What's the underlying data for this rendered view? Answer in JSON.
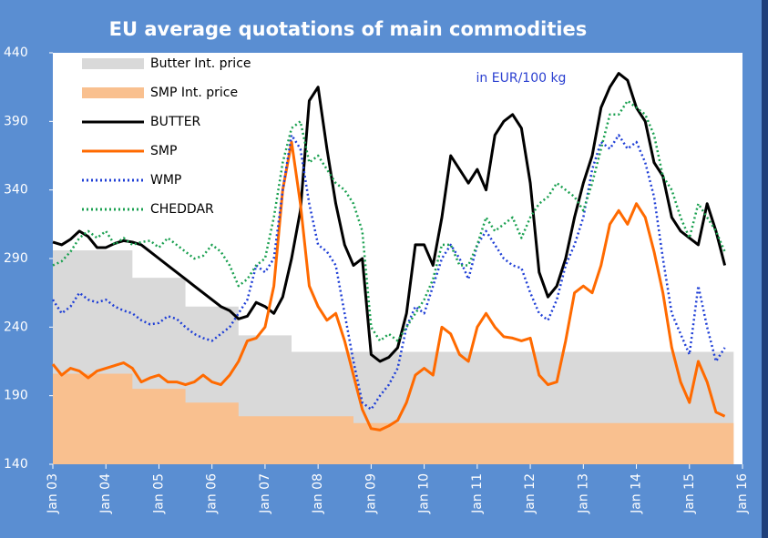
{
  "chart_data": {
    "type": "line",
    "title": "EU average quotations of main commodities",
    "annotation": "in EUR/100 kg",
    "legend": "upper left",
    "x": [
      "2003-01",
      "2003-03",
      "2003-05",
      "2003-07",
      "2003-09",
      "2003-11",
      "2004-01",
      "2004-03",
      "2004-05",
      "2004-07",
      "2004-09",
      "2004-11",
      "2005-01",
      "2005-03",
      "2005-05",
      "2005-07",
      "2005-09",
      "2005-11",
      "2006-01",
      "2006-03",
      "2006-05",
      "2006-07",
      "2006-09",
      "2006-11",
      "2007-01",
      "2007-03",
      "2007-05",
      "2007-07",
      "2007-09",
      "2007-11",
      "2008-01",
      "2008-03",
      "2008-05",
      "2008-07",
      "2008-09",
      "2008-11",
      "2009-01",
      "2009-03",
      "2009-05",
      "2009-07",
      "2009-09",
      "2009-11",
      "2010-01",
      "2010-03",
      "2010-05",
      "2010-07",
      "2010-09",
      "2010-11",
      "2011-01",
      "2011-03",
      "2011-05",
      "2011-07",
      "2011-09",
      "2011-11",
      "2012-01",
      "2012-03",
      "2012-05",
      "2012-07",
      "2012-09",
      "2012-11",
      "2013-01",
      "2013-03",
      "2013-05",
      "2013-07",
      "2013-09",
      "2013-11",
      "2014-01",
      "2014-03",
      "2014-05",
      "2014-07",
      "2014-09",
      "2014-11",
      "2015-01",
      "2015-03",
      "2015-05",
      "2015-07",
      "2015-09"
    ],
    "xlim": [
      "2003-01",
      "2016-01"
    ],
    "xticks": [
      {
        "value": "2003-01",
        "label": "Jan 03"
      },
      {
        "value": "2004-01",
        "label": "Jan 04"
      },
      {
        "value": "2005-01",
        "label": "Jan 05"
      },
      {
        "value": "2006-01",
        "label": "Jan 06"
      },
      {
        "value": "2007-01",
        "label": "Jan 07"
      },
      {
        "value": "2008-01",
        "label": "Jan 08"
      },
      {
        "value": "2009-01",
        "label": "Jan 09"
      },
      {
        "value": "2010-01",
        "label": "Jan 10"
      },
      {
        "value": "2011-01",
        "label": "Jan 11"
      },
      {
        "value": "2012-01",
        "label": "Jan 12"
      },
      {
        "value": "2013-01",
        "label": "Jan 13"
      },
      {
        "value": "2014-01",
        "label": "Jan 14"
      },
      {
        "value": "2015-01",
        "label": "Jan 15"
      },
      {
        "value": "2016-01",
        "label": "Jan 16"
      }
    ],
    "ylim": [
      140,
      440
    ],
    "yticks": [
      140,
      190,
      240,
      290,
      340,
      390,
      440
    ],
    "series": [
      {
        "name": "Butter Int. price",
        "color": "#d9d9d9",
        "style": "step-area",
        "values": [
          296,
          296,
          296,
          296,
          296,
          296,
          296,
          296,
          296,
          276,
          276,
          276,
          276,
          276,
          276,
          255,
          255,
          255,
          255,
          255,
          255,
          234,
          234,
          234,
          234,
          234,
          234,
          222,
          222,
          222,
          222,
          222,
          222,
          222,
          222,
          222,
          222,
          222,
          222,
          222,
          222,
          222,
          222,
          222,
          222,
          222,
          222,
          222,
          222,
          222,
          222,
          222,
          222,
          222,
          222,
          222,
          222,
          222,
          222,
          222,
          222,
          222,
          222,
          222,
          222,
          222,
          222,
          222,
          222,
          222,
          222,
          222,
          222,
          222,
          222,
          222,
          222
        ]
      },
      {
        "name": "SMP Int. price",
        "color": "#f9c08f",
        "style": "step-area",
        "values": [
          206,
          206,
          206,
          206,
          206,
          206,
          206,
          206,
          206,
          195,
          195,
          195,
          195,
          195,
          195,
          185,
          185,
          185,
          185,
          185,
          185,
          175,
          175,
          175,
          175,
          175,
          175,
          175,
          175,
          175,
          175,
          175,
          175,
          175,
          170,
          170,
          170,
          170,
          170,
          170,
          170,
          170,
          170,
          170,
          170,
          170,
          170,
          170,
          170,
          170,
          170,
          170,
          170,
          170,
          170,
          170,
          170,
          170,
          170,
          170,
          170,
          170,
          170,
          170,
          170,
          170,
          170,
          170,
          170,
          170,
          170,
          170,
          170,
          170,
          170,
          170,
          170
        ]
      },
      {
        "name": "BUTTER",
        "color": "#000000",
        "style": "solid",
        "values": [
          302,
          300,
          304,
          310,
          306,
          298,
          298,
          301,
          303,
          302,
          300,
          295,
          290,
          285,
          280,
          275,
          270,
          265,
          260,
          255,
          252,
          246,
          248,
          258,
          255,
          250,
          262,
          290,
          325,
          405,
          415,
          370,
          330,
          300,
          285,
          290,
          220,
          215,
          218,
          225,
          250,
          300,
          300,
          285,
          320,
          365,
          355,
          345,
          355,
          340,
          380,
          390,
          395,
          385,
          345,
          280,
          262,
          270,
          290,
          320,
          345,
          365,
          400,
          415,
          425,
          420,
          400,
          390,
          360,
          350,
          320,
          310,
          305,
          300,
          330,
          310,
          285
        ]
      },
      {
        "name": "SMP",
        "color": "#ff6a00",
        "style": "solid",
        "values": [
          213,
          205,
          210,
          208,
          203,
          208,
          210,
          212,
          214,
          210,
          200,
          203,
          205,
          200,
          200,
          198,
          200,
          205,
          200,
          198,
          205,
          215,
          230,
          232,
          240,
          270,
          340,
          375,
          330,
          270,
          255,
          245,
          250,
          230,
          205,
          180,
          166,
          165,
          168,
          172,
          185,
          205,
          210,
          205,
          240,
          235,
          220,
          215,
          240,
          250,
          240,
          233,
          232,
          230,
          232,
          205,
          198,
          200,
          230,
          265,
          270,
          265,
          285,
          315,
          325,
          315,
          330,
          320,
          295,
          265,
          225,
          200,
          185,
          215,
          200,
          178,
          175
        ]
      },
      {
        "name": "WMP",
        "color": "#1f3fd6",
        "style": "dotted",
        "values": [
          260,
          250,
          255,
          265,
          260,
          258,
          260,
          255,
          252,
          250,
          245,
          242,
          243,
          248,
          246,
          240,
          235,
          232,
          230,
          235,
          240,
          250,
          260,
          285,
          280,
          290,
          340,
          380,
          370,
          330,
          300,
          295,
          285,
          250,
          215,
          185,
          180,
          190,
          198,
          210,
          240,
          255,
          250,
          270,
          290,
          300,
          290,
          275,
          300,
          310,
          300,
          290,
          285,
          283,
          265,
          250,
          245,
          260,
          285,
          300,
          320,
          355,
          375,
          370,
          380,
          370,
          375,
          360,
          335,
          290,
          250,
          235,
          220,
          270,
          240,
          215,
          225
        ]
      },
      {
        "name": "CHEDDAR",
        "color": "#1aa050",
        "style": "dotted",
        "values": [
          285,
          288,
          295,
          305,
          310,
          305,
          310,
          300,
          305,
          300,
          302,
          303,
          298,
          305,
          300,
          295,
          290,
          292,
          300,
          295,
          285,
          270,
          275,
          285,
          290,
          320,
          360,
          385,
          390,
          360,
          365,
          355,
          345,
          340,
          330,
          310,
          240,
          230,
          235,
          230,
          240,
          250,
          260,
          275,
          300,
          300,
          285,
          285,
          300,
          320,
          310,
          315,
          320,
          305,
          320,
          330,
          335,
          345,
          340,
          335,
          325,
          345,
          370,
          395,
          395,
          405,
          400,
          395,
          380,
          350,
          340,
          320,
          305,
          330,
          320,
          310,
          295
        ]
      }
    ]
  }
}
